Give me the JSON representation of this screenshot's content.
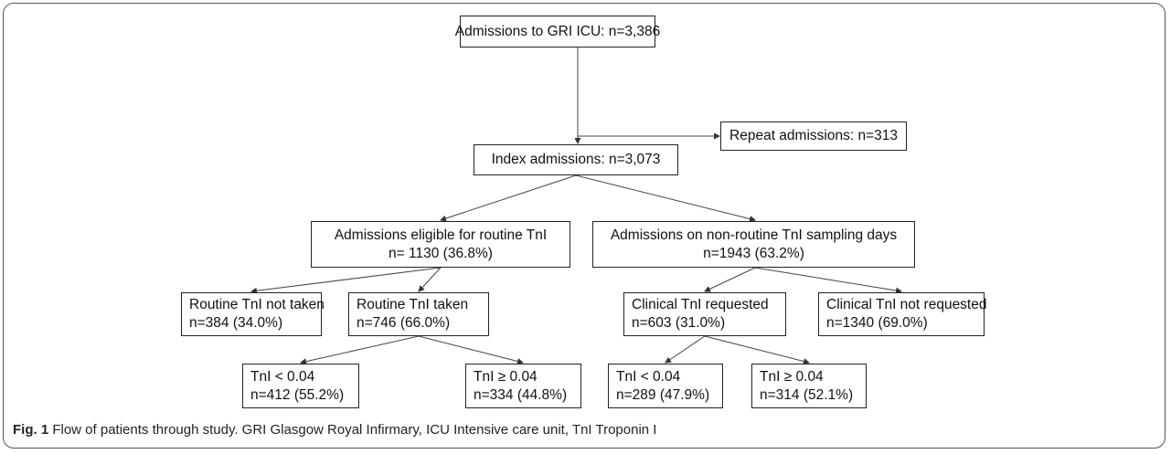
{
  "nodes": [
    {
      "lines": [
        "Admissions to GRI ICU: n=3,386"
      ]
    },
    {
      "lines": [
        "Repeat admissions: n=313"
      ]
    },
    {
      "lines": [
        "Index admissions: n=3,073"
      ]
    },
    {
      "lines": [
        "Admissions eligible for routine TnI",
        "n= 1130 (36.8%)"
      ]
    },
    {
      "lines": [
        "Admissions on non-routine TnI sampling days",
        "n=1943 (63.2%)"
      ]
    },
    {
      "lines": [
        "Routine TnI not taken",
        "n=384 (34.0%)"
      ]
    },
    {
      "lines": [
        "Routine TnI taken",
        "n=746 (66.0%)"
      ]
    },
    {
      "lines": [
        "Clinical TnI requested",
        "n=603 (31.0%)"
      ]
    },
    {
      "lines": [
        "Clinical TnI not requested",
        "n=1340 (69.0%)"
      ]
    },
    {
      "lines": [
        "TnI < 0.04",
        "n=412 (55.2%)"
      ]
    },
    {
      "lines": [
        "TnI ≥ 0.04",
        "n=334 (44.8%)"
      ]
    },
    {
      "lines": [
        "TnI < 0.04",
        "n=289 (47.9%)"
      ]
    },
    {
      "lines": [
        "TnI ≥ 0.04",
        "n=314 (52.1%)"
      ]
    }
  ],
  "caption": {
    "label": "Fig. 1",
    "text": "Flow of patients through study. GRI Glasgow Royal Infirmary, ICU Intensive care unit, TnI Troponin I"
  }
}
